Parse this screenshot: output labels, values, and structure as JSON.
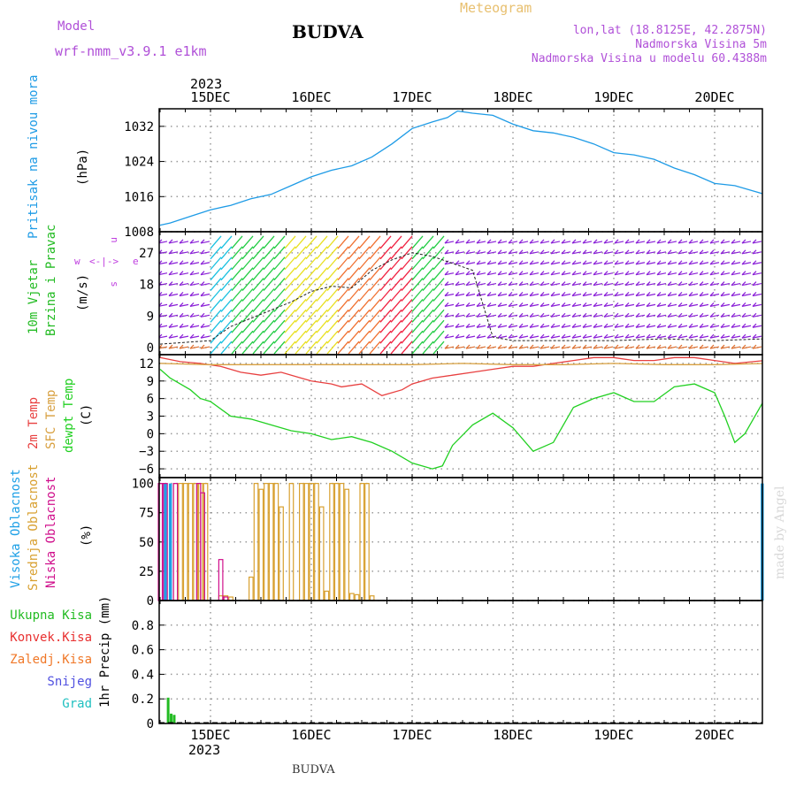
{
  "header": {
    "model_label": "Model",
    "model_name": "wrf-nmm_v3.9.1 e1km",
    "city": "BUDVA",
    "meteogram": "Meteogram",
    "lonlat": "lon,lat (18.8125E, 42.2875N)",
    "altitude": "Nadmorska Visina 5m",
    "model_altitude": "Nadmorska Visina u modelu 60.4388m",
    "year": "2023",
    "footer_city": "BUDVA",
    "watermark": "made by Angel"
  },
  "colors": {
    "pressure": "#1e9be6",
    "wind_label": "#22bb22",
    "temp_2m": "#e84040",
    "temp_sfc": "#d8a040",
    "dewpoint": "#22d022",
    "cloud_high": "#1ea0e6",
    "cloud_mid": "#d8a030",
    "cloud_low": "#d0108c",
    "precip_total": "#22bb22",
    "precip_conv": "#e83030",
    "precip_frozen": "#f07828",
    "precip_snow": "#5050e0",
    "precip_grad": "#20c0c0",
    "wind_dir_label": "#c040e0"
  },
  "chart_data": [
    {
      "type": "line",
      "panel": "pressure",
      "ylabel_lines": [
        "Pritisak na nivou mora"
      ],
      "unit": "(hPa)",
      "ylim": [
        1008,
        1036
      ],
      "yticks": [
        1008,
        1016,
        1024,
        1032
      ],
      "x_day_labels": [
        "15DEC",
        "16DEC",
        "17DEC",
        "18DEC",
        "19DEC",
        "20DEC"
      ],
      "grid": true,
      "x": [
        -0.5,
        -0.4,
        -0.2,
        0,
        0.2,
        0.4,
        0.6,
        0.8,
        1.0,
        1.2,
        1.4,
        1.6,
        1.8,
        2.0,
        2.2,
        2.35,
        2.45,
        2.6,
        2.8,
        3.0,
        3.2,
        3.4,
        3.6,
        3.8,
        4.0,
        4.2,
        4.4,
        4.6,
        4.8,
        5.0,
        5.2,
        5.5
      ],
      "y": [
        1009.5,
        1010,
        1011.5,
        1013,
        1014,
        1015.5,
        1016.5,
        1018.5,
        1020.5,
        1022,
        1023,
        1025,
        1028,
        1031.5,
        1033,
        1034,
        1035.5,
        1035,
        1034.5,
        1032.5,
        1031,
        1030.5,
        1029.5,
        1028,
        1026,
        1025.5,
        1024.5,
        1022.5,
        1021,
        1019,
        1018.5,
        1016.5
      ]
    },
    {
      "type": "line",
      "panel": "wind",
      "ylabel_lines": [
        "10m Vjetar",
        "Brzina i Pravac"
      ],
      "unit": "(m/s)",
      "ylim": [
        -2,
        33
      ],
      "yticks": [
        0,
        9,
        18,
        27
      ],
      "direction_legend": [
        "w",
        "e",
        "n",
        "s"
      ],
      "grid": true,
      "series": [
        {
          "name": "speed",
          "x": [
            -0.5,
            0,
            0.2,
            0.5,
            0.8,
            1.0,
            1.2,
            1.4,
            1.6,
            1.8,
            2.0,
            2.2,
            2.4,
            2.6,
            2.8,
            3.0,
            3.5,
            4.0,
            4.5,
            5.0,
            5.5
          ],
          "y": [
            1,
            2,
            6,
            9.5,
            13,
            16,
            17.5,
            17,
            22,
            25,
            27,
            26,
            24,
            22,
            3,
            2,
            2,
            2,
            2.5,
            2,
            2.5
          ]
        }
      ]
    },
    {
      "type": "line",
      "panel": "temperature",
      "ylabel_lines": [
        "2m Temp",
        "SFC Temp",
        "dewpt Temp"
      ],
      "unit": "(C)",
      "ylim": [
        -7.5,
        13.5
      ],
      "yticks": [
        -6,
        -3,
        0,
        3,
        6,
        9,
        12
      ],
      "grid": true,
      "series": [
        {
          "name": "2m Temp",
          "x": [
            -0.5,
            -0.3,
            -0.1,
            0.1,
            0.3,
            0.5,
            0.7,
            0.9,
            1.0,
            1.2,
            1.3,
            1.5,
            1.7,
            1.9,
            2.0,
            2.2,
            2.4,
            2.6,
            2.8,
            3.0,
            3.2,
            3.4,
            3.6,
            3.8,
            4.0,
            4.2,
            4.4,
            4.6,
            4.8,
            5.0,
            5.2,
            5.5
          ],
          "y": [
            13,
            12.3,
            12,
            11.5,
            10.5,
            10,
            10.5,
            9.5,
            9,
            8.5,
            8,
            8.5,
            6.5,
            7.5,
            8.5,
            9.5,
            10,
            10.5,
            11,
            11.5,
            11.5,
            12,
            12.5,
            13,
            13,
            12.5,
            12.5,
            13,
            13,
            12.5,
            12,
            12.5
          ]
        },
        {
          "name": "SFC Temp",
          "x": [
            -0.5,
            0,
            0.5,
            1.0,
            1.5,
            2.0,
            2.5,
            3.0,
            3.5,
            4.0,
            4.5,
            5.0,
            5.5
          ],
          "y": [
            12,
            11.8,
            11.8,
            11.8,
            11.8,
            11.8,
            12,
            11.8,
            11.8,
            12,
            11.8,
            11.8,
            12
          ]
        },
        {
          "name": "dewpt Temp",
          "x": [
            -0.5,
            -0.4,
            -0.3,
            -0.2,
            -0.1,
            0,
            0.2,
            0.4,
            0.6,
            0.8,
            1.0,
            1.2,
            1.4,
            1.6,
            1.8,
            2.0,
            2.2,
            2.3,
            2.4,
            2.6,
            2.8,
            3.0,
            3.2,
            3.4,
            3.6,
            3.8,
            4.0,
            4.2,
            4.4,
            4.6,
            4.8,
            5.0,
            5.1,
            5.2,
            5.3,
            5.5
          ],
          "y": [
            11,
            9.5,
            8.5,
            7.5,
            6,
            5.5,
            3,
            2.5,
            1.5,
            0.5,
            0,
            -1,
            -0.5,
            -1.5,
            -3,
            -5,
            -6,
            -5.5,
            -2,
            1.5,
            3.5,
            1,
            -3,
            -1.5,
            4.5,
            6,
            7,
            5.5,
            5.5,
            8,
            8.5,
            7,
            3,
            -1.5,
            0,
            6
          ]
        }
      ]
    },
    {
      "type": "bar",
      "panel": "clouds",
      "ylabel_lines": [
        "Visoka Oblacnost",
        "Srednja Oblacnost",
        "Niska Oblacnost"
      ],
      "unit": "(%)",
      "ylim": [
        0,
        105
      ],
      "yticks": [
        0,
        25,
        50,
        75,
        100
      ],
      "grid": true,
      "series": [
        {
          "name": "Visoka Oblacnost",
          "x": [
            -0.45,
            -0.4,
            5.47
          ],
          "values": [
            100,
            100,
            100
          ]
        },
        {
          "name": "Srednja Oblacnost",
          "x": [
            -0.35,
            -0.3,
            -0.25,
            -0.2,
            -0.15,
            -0.1,
            -0.05,
            0.1,
            0.15,
            0.2,
            0.4,
            0.45,
            0.5,
            0.55,
            0.6,
            0.65,
            0.7,
            0.8,
            0.9,
            0.95,
            1.0,
            1.05,
            1.1,
            1.15,
            1.2,
            1.25,
            1.3,
            1.35,
            1.4,
            1.45,
            1.5,
            1.55,
            1.6
          ],
          "values": [
            100,
            100,
            100,
            100,
            100,
            100,
            100,
            4,
            4,
            3,
            20,
            100,
            95,
            100,
            100,
            100,
            80,
            100,
            100,
            100,
            100,
            100,
            80,
            8,
            100,
            100,
            100,
            95,
            6,
            5,
            100,
            100,
            4
          ]
        },
        {
          "name": "Niska Oblacnost",
          "x": [
            -0.5,
            -0.45,
            -0.35,
            -0.12,
            -0.08,
            0.1,
            0.15
          ],
          "values": [
            100,
            100,
            100,
            100,
            92,
            35,
            3
          ]
        }
      ]
    },
    {
      "type": "bar",
      "panel": "precip",
      "legend_labels": [
        "Ukupna Kisa",
        "Konvek.Kisa",
        "Zaledj.Kisa",
        "Snijeg",
        "Grad"
      ],
      "ylabel": "1hr Precip (mm)",
      "ylim": [
        0,
        1.0
      ],
      "yticks": [
        0,
        0.2,
        0.4,
        0.6,
        0.8
      ],
      "x_day_labels": [
        "15DEC",
        "16DEC",
        "17DEC",
        "18DEC",
        "19DEC",
        "20DEC"
      ],
      "grid": true,
      "series": [
        {
          "name": "Ukupna Kisa",
          "x": [
            -0.42,
            -0.39,
            -0.36
          ],
          "values": [
            0.21,
            0.08,
            0.07
          ]
        }
      ]
    }
  ]
}
